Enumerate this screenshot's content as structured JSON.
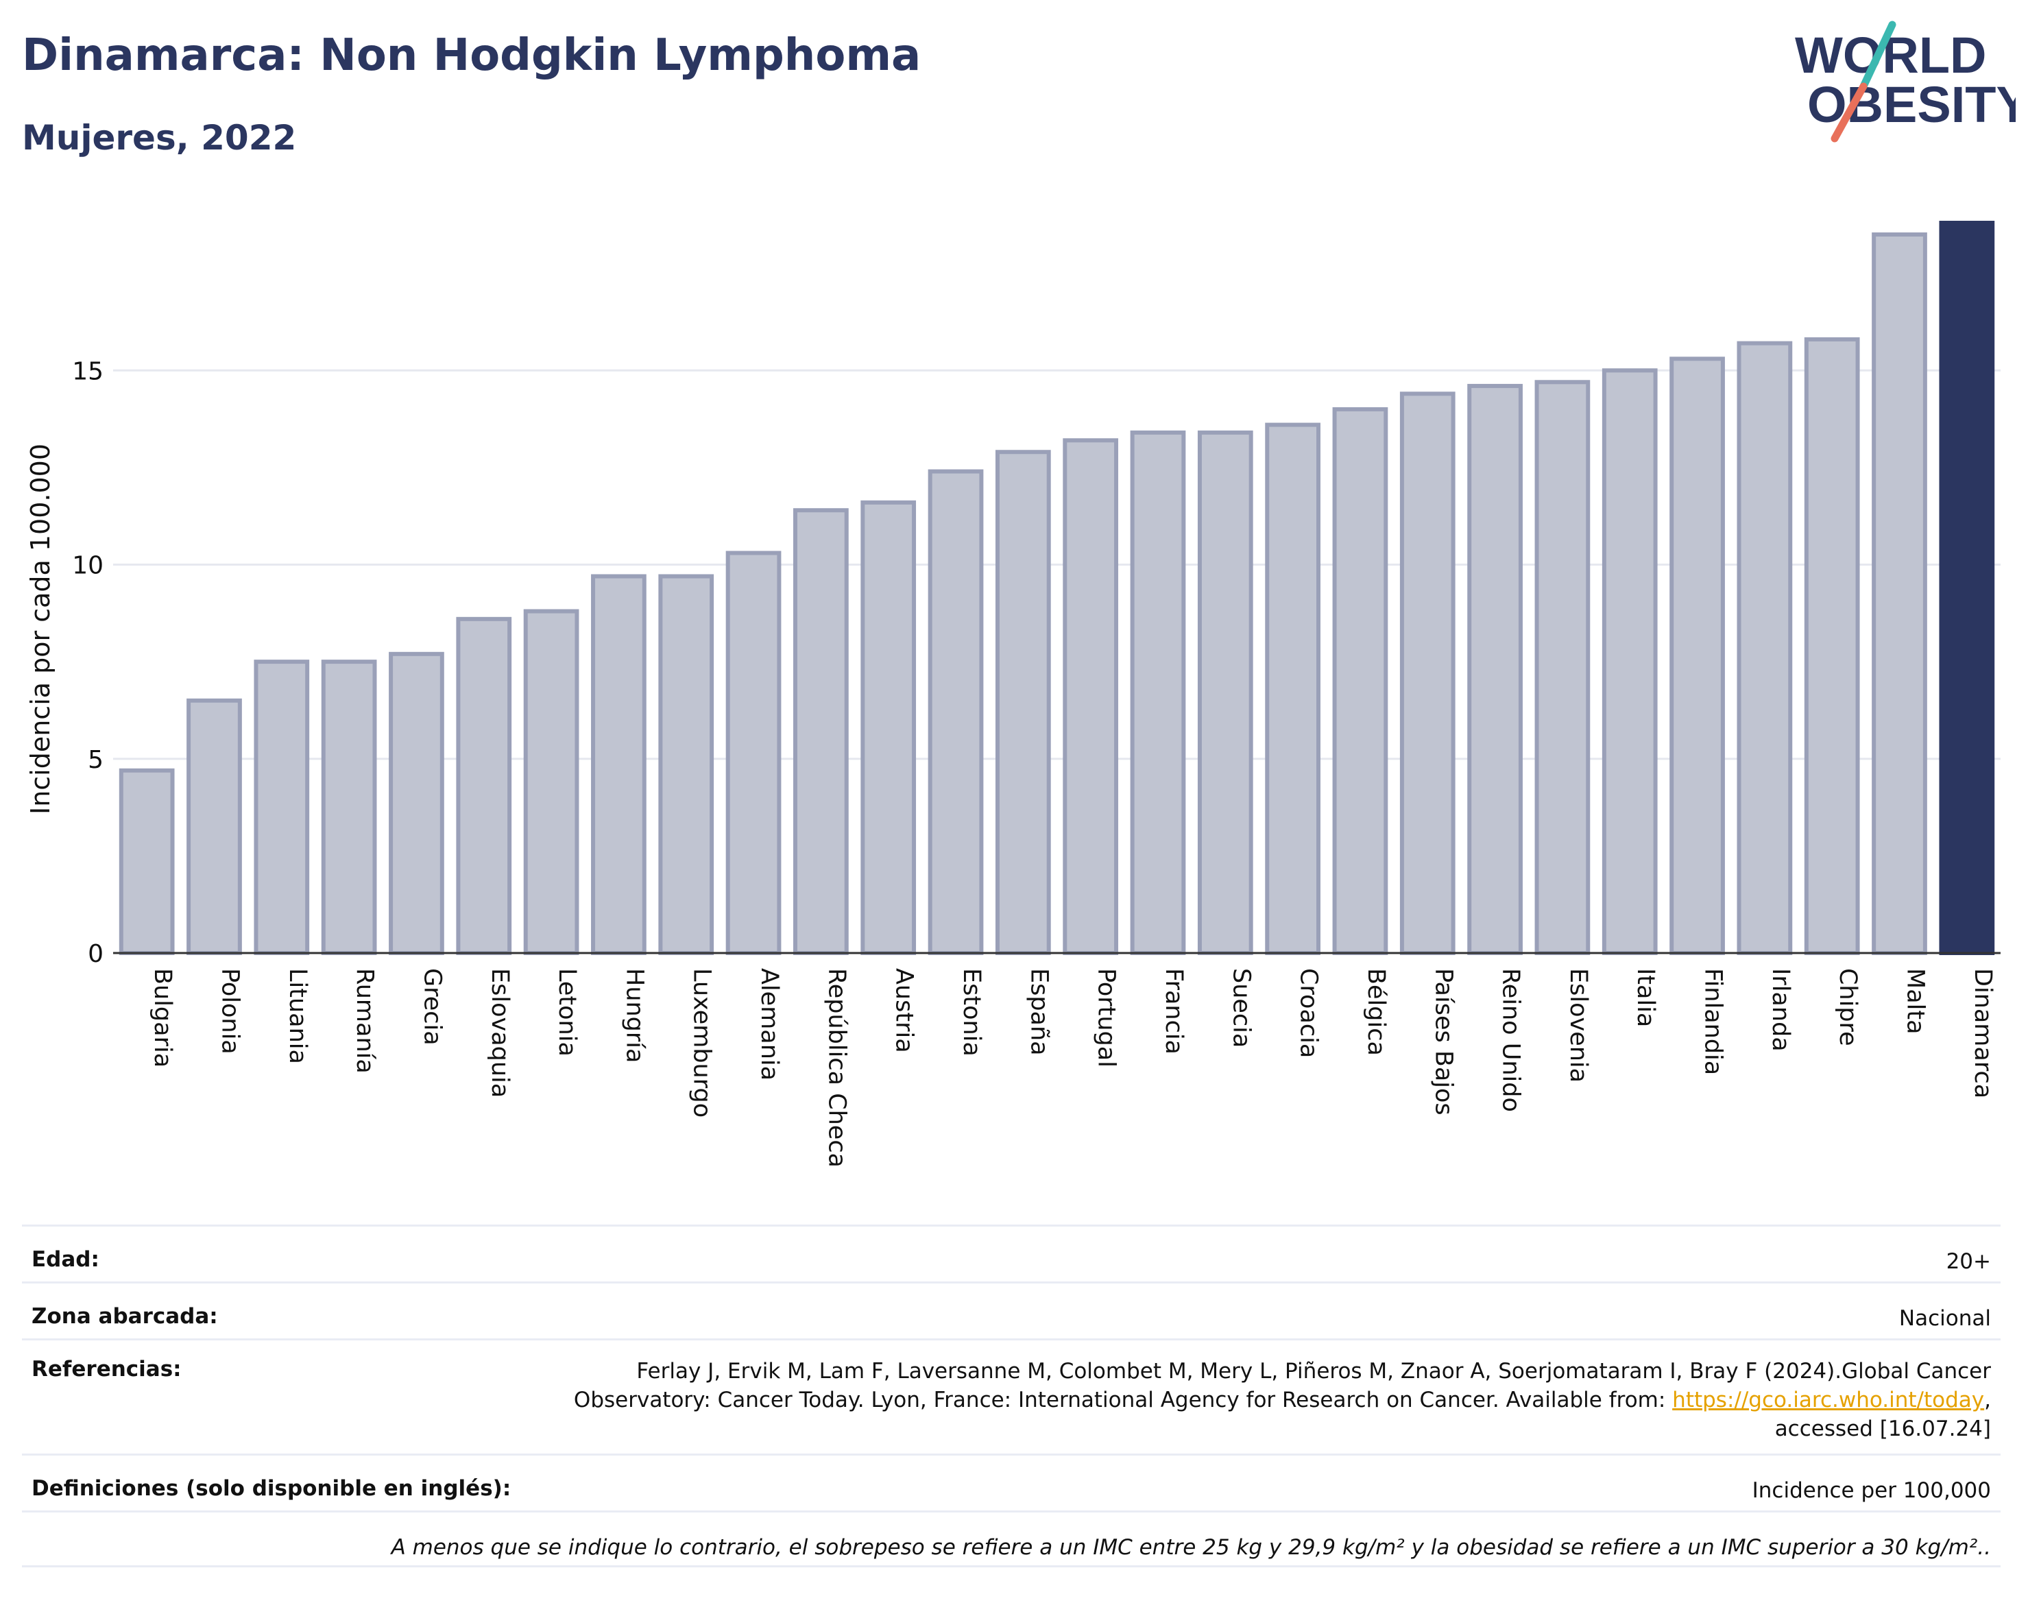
{
  "header": {
    "title": "Dinamarca: Non Hodgkin Lymphoma",
    "subtitle": "Mujeres, 2022"
  },
  "logo": {
    "line1": "WORLD",
    "line2": "OBESITY",
    "colors": {
      "text": "#2b3660",
      "slash_top": "#3bb8b0",
      "slash_bottom": "#e8705a"
    }
  },
  "chart_data": {
    "type": "bar",
    "title": "",
    "xlabel": "",
    "ylabel": "Incidencia por cada 100.000",
    "ylim": [
      0,
      18.8
    ],
    "yticks": [
      0,
      5,
      10,
      15
    ],
    "grid": true,
    "categories": [
      "Bulgaria",
      "Polonia",
      "Lituania",
      "Rumanía",
      "Grecia",
      "Eslovaquia",
      "Letonia",
      "Hungría",
      "Luxemburgo",
      "Alemania",
      "República Checa",
      "Austria",
      "Estonia",
      "España",
      "Portugal",
      "Francia",
      "Suecia",
      "Croacia",
      "Bélgica",
      "Países Bajos",
      "Reino Unido",
      "Eslovenia",
      "Italia",
      "Finlandia",
      "Irlanda",
      "Chipre",
      "Malta",
      "Dinamarca"
    ],
    "values": [
      4.7,
      6.5,
      7.5,
      7.5,
      7.7,
      8.6,
      8.8,
      9.7,
      9.7,
      10.3,
      11.4,
      11.6,
      12.4,
      12.9,
      13.2,
      13.4,
      13.4,
      13.6,
      14.0,
      14.4,
      14.6,
      14.7,
      15.0,
      15.3,
      15.7,
      15.8,
      18.5,
      18.8
    ],
    "highlight": "Dinamarca",
    "colors": {
      "bar": "#c0c4d1",
      "bar_border": "#9aa0b8",
      "highlight": "#2b3660",
      "grid": "#e6e8ef"
    }
  },
  "info": {
    "edad_label": "Edad:",
    "edad_value": "20+",
    "zona_label": "Zona abarcada:",
    "zona_value": "Nacional",
    "ref_label": "Referencias:",
    "ref_line1": "Ferlay J, Ervik M, Lam F, Laversanne M, Colombet M, Mery L, Piñeros M, Znaor A, Soerjomataram I, Bray F (2024).Global Cancer",
    "ref_line2_pre": "Observatory: Cancer Today. Lyon, France: International Agency for Research on Cancer. Available from: ",
    "ref_link": "https://gco.iarc.who.int/today",
    "ref_line2_post": ",",
    "ref_line3": "accessed [16.07.24]",
    "def_label": "Definiciones (solo disponible en inglés):",
    "def_value": "Incidence per 100,000",
    "note": "A menos que se indique lo contrario, el sobrepeso se refiere a un IMC entre 25 kg y 29,9 kg/m² y la obesidad se refiere a un IMC superior a 30 kg/m².."
  }
}
